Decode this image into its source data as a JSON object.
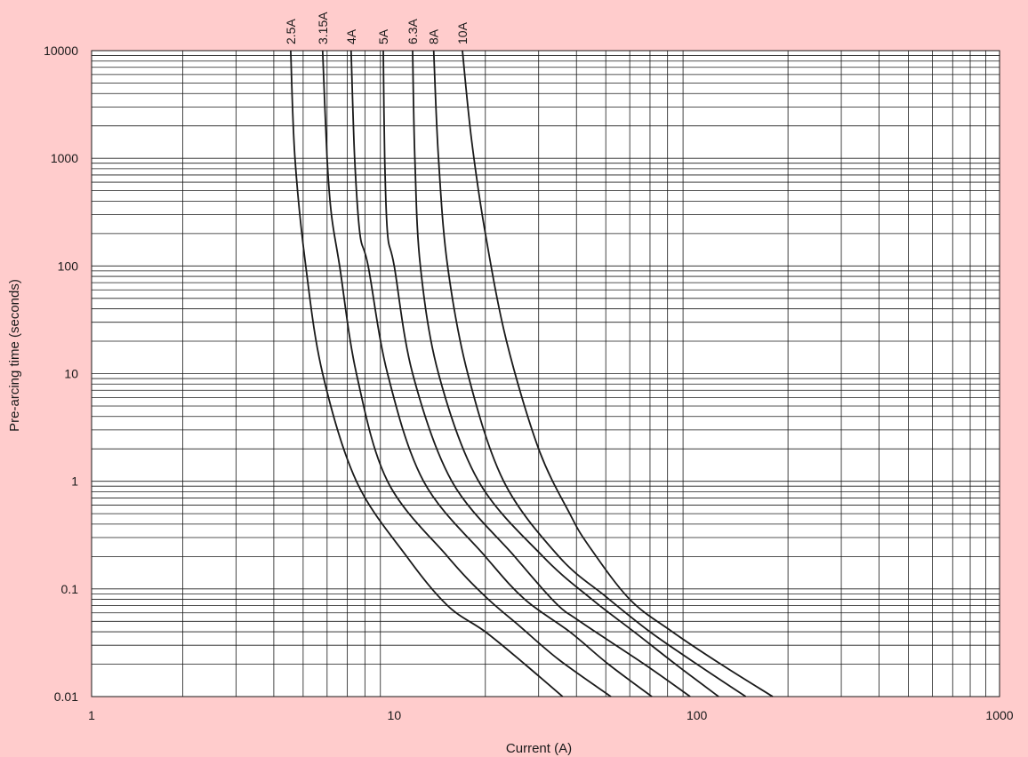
{
  "chart_data": {
    "type": "line",
    "xlabel": "Current (A)",
    "ylabel": "Pre-arcing time (seconds)",
    "xscale": "log",
    "yscale": "log",
    "xlim": [
      1,
      1000
    ],
    "ylim": [
      0.01,
      10000
    ],
    "grid": true,
    "xticks": [
      "1",
      "10",
      "100",
      "1000"
    ],
    "yticks": [
      "0.01",
      "0.1",
      "1",
      "10",
      "100",
      "1000",
      "10000"
    ],
    "line_color": "#1a1a1a",
    "background": "#ffcccc",
    "plot_background": "#ffffff",
    "series": [
      {
        "name": "2.5A",
        "points": [
          [
            4.55,
            10000
          ],
          [
            4.7,
            1000
          ],
          [
            5.1,
            100
          ],
          [
            5.8,
            10
          ],
          [
            7.5,
            1
          ],
          [
            11,
            0.2
          ],
          [
            15,
            0.07
          ],
          [
            20,
            0.04
          ],
          [
            27,
            0.02
          ],
          [
            36,
            0.01
          ]
        ]
      },
      {
        "name": "3.15A",
        "points": [
          [
            5.8,
            10000
          ],
          [
            6.0,
            1000
          ],
          [
            6.2,
            300
          ],
          [
            6.6,
            100
          ],
          [
            7.5,
            10
          ],
          [
            9.5,
            1
          ],
          [
            15,
            0.2
          ],
          [
            20,
            0.085
          ],
          [
            26,
            0.045
          ],
          [
            35,
            0.022
          ],
          [
            52,
            0.01
          ]
        ]
      },
      {
        "name": "4A",
        "points": [
          [
            7.2,
            10000
          ],
          [
            7.4,
            1000
          ],
          [
            7.7,
            200
          ],
          [
            8.2,
            100
          ],
          [
            9.5,
            10
          ],
          [
            12.5,
            1
          ],
          [
            20,
            0.2
          ],
          [
            27,
            0.08
          ],
          [
            38,
            0.04
          ],
          [
            51,
            0.02
          ],
          [
            71,
            0.01
          ]
        ]
      },
      {
        "name": "5A",
        "points": [
          [
            9.2,
            10000
          ],
          [
            9.3,
            1000
          ],
          [
            9.5,
            200
          ],
          [
            10.0,
            100
          ],
          [
            11.5,
            10
          ],
          [
            15.5,
            1
          ],
          [
            25,
            0.2
          ],
          [
            34,
            0.075
          ],
          [
            41,
            0.05
          ],
          [
            67,
            0.02
          ],
          [
            95,
            0.01
          ]
        ]
      },
      {
        "name": "6.3A",
        "points": [
          [
            11.5,
            10000
          ],
          [
            11.7,
            1000
          ],
          [
            12.2,
            100
          ],
          [
            14.0,
            10
          ],
          [
            19,
            1
          ],
          [
            31,
            0.2
          ],
          [
            45,
            0.08
          ],
          [
            62,
            0.04
          ],
          [
            85,
            0.02
          ],
          [
            118,
            0.01
          ]
        ]
      },
      {
        "name": "8A",
        "points": [
          [
            13.5,
            10000
          ],
          [
            14.0,
            1000
          ],
          [
            15.0,
            100
          ],
          [
            17.5,
            10
          ],
          [
            23,
            1
          ],
          [
            35,
            0.2
          ],
          [
            50,
            0.085
          ],
          [
            70,
            0.04
          ],
          [
            100,
            0.02
          ],
          [
            145,
            0.01
          ]
        ]
      },
      {
        "name": "10A",
        "points": [
          [
            16.8,
            10000
          ],
          [
            18.0,
            1500
          ],
          [
            20.0,
            200
          ],
          [
            23.5,
            20
          ],
          [
            30,
            2
          ],
          [
            38,
            0.5
          ],
          [
            44,
            0.25
          ],
          [
            60,
            0.08
          ],
          [
            83,
            0.04
          ],
          [
            120,
            0.02
          ],
          [
            178,
            0.01
          ]
        ]
      }
    ]
  }
}
